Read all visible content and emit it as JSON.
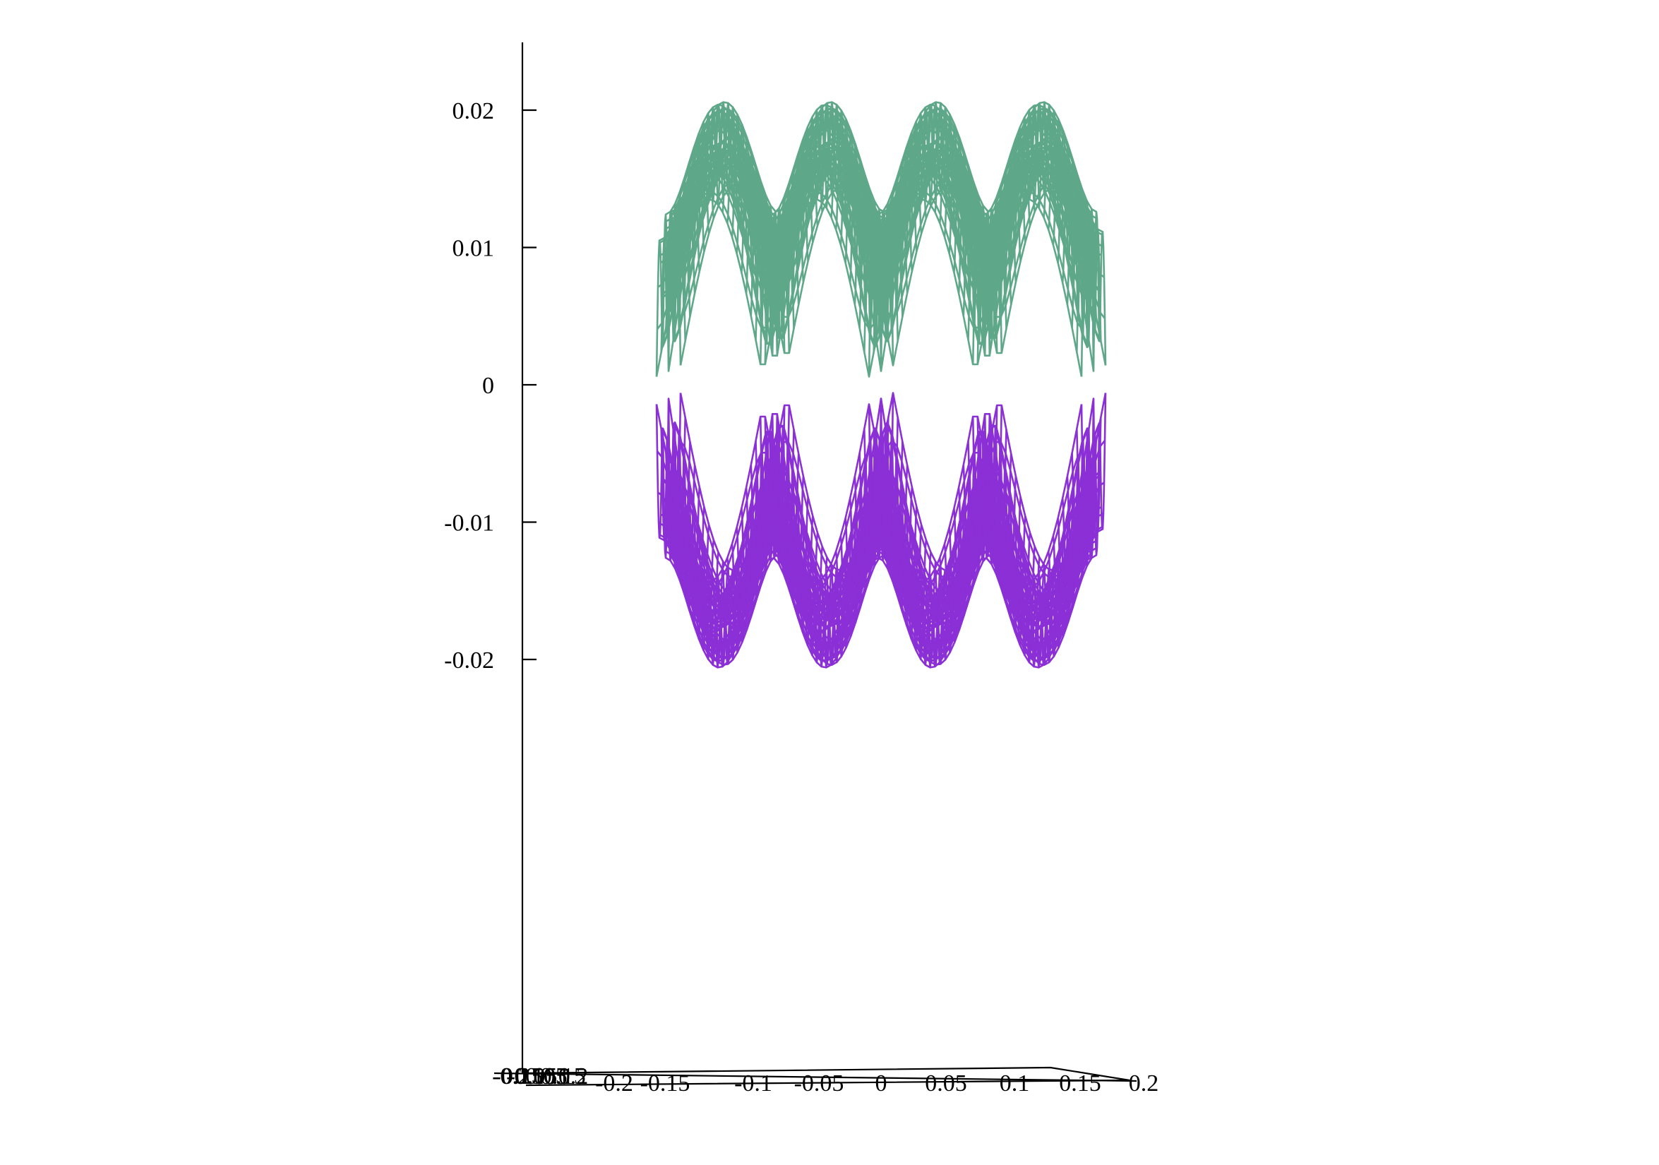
{
  "chart_data": {
    "type": "surface-3d",
    "title": "",
    "zlabel": "",
    "z_ticks": [
      "0.02",
      "0.01",
      "0",
      "-0.01",
      "-0.02"
    ],
    "z_tick_values": [
      0.02,
      0.01,
      0,
      -0.01,
      -0.02
    ],
    "zlim": [
      -0.05,
      0.025
    ],
    "x_ticks": [
      "-0.2",
      "-0.15",
      "-0.1",
      "-0.05",
      "0",
      "0.05",
      "0.1",
      "0.15",
      "0.2"
    ],
    "y_ticks": [
      "-0.2",
      "-0.15",
      "-0.1",
      "-0.05",
      "0",
      "0.05",
      "0.1",
      "0.15",
      "0.2"
    ],
    "xlim": [
      -0.2,
      0.2
    ],
    "ylim": [
      -0.2,
      0.2
    ],
    "view": "nearly edge-on, looking along the y axis",
    "grid": false,
    "series": [
      {
        "role": "upper band (conduction)",
        "color": "#5ea889",
        "z_min": 0.0,
        "z_max": 0.025,
        "min_at_k_points": [
          -0.2,
          -0.1,
          0.0,
          0.1,
          0.2
        ]
      },
      {
        "role": "lower band (valence)",
        "color": "#8b2fd6",
        "z_min": -0.026,
        "z_max": -0.001,
        "max_at_k_points": [
          -0.2,
          -0.1,
          0.0,
          0.1,
          0.2
        ]
      }
    ]
  }
}
